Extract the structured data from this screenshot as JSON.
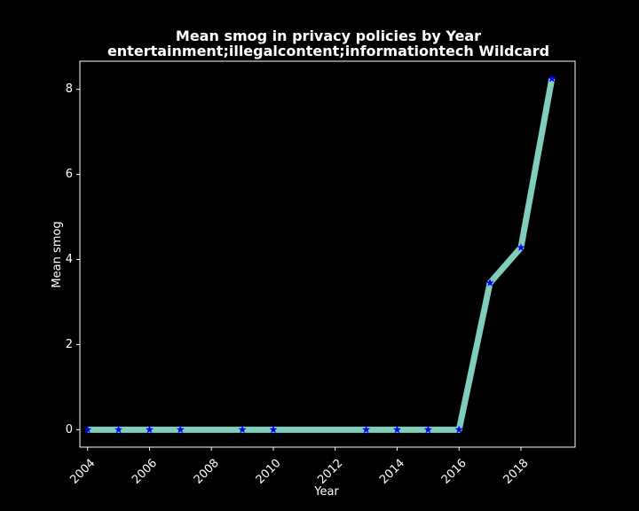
{
  "chart_data": {
    "type": "line",
    "title": "Mean smog in privacy policies by Year",
    "subtitle": "entertainment;illegalcontent;informationtech Wildcard",
    "xlabel": "Year",
    "ylabel": "Mean smog",
    "xlim": [
      2003.75,
      2019.75
    ],
    "ylim": [
      -0.41,
      8.66
    ],
    "xticks": [
      "2004",
      "2006",
      "2008",
      "2010",
      "2012",
      "2014",
      "2016",
      "2018"
    ],
    "yticks": [
      "0",
      "2",
      "4",
      "6",
      "8"
    ],
    "grid": false,
    "series": [
      {
        "x": [
          2004,
          2005,
          2006,
          2007,
          2009,
          2010,
          2013,
          2014,
          2015,
          2016,
          2017,
          2018,
          2019
        ],
        "y": [
          0,
          0,
          0,
          0,
          0,
          0,
          0,
          0,
          0,
          0,
          3.45,
          4.28,
          8.25
        ],
        "line_color": "#7fcdbb",
        "marker": "star",
        "marker_color": "#0000ff"
      }
    ],
    "background": "#000000",
    "foreground": "#ffffff"
  }
}
